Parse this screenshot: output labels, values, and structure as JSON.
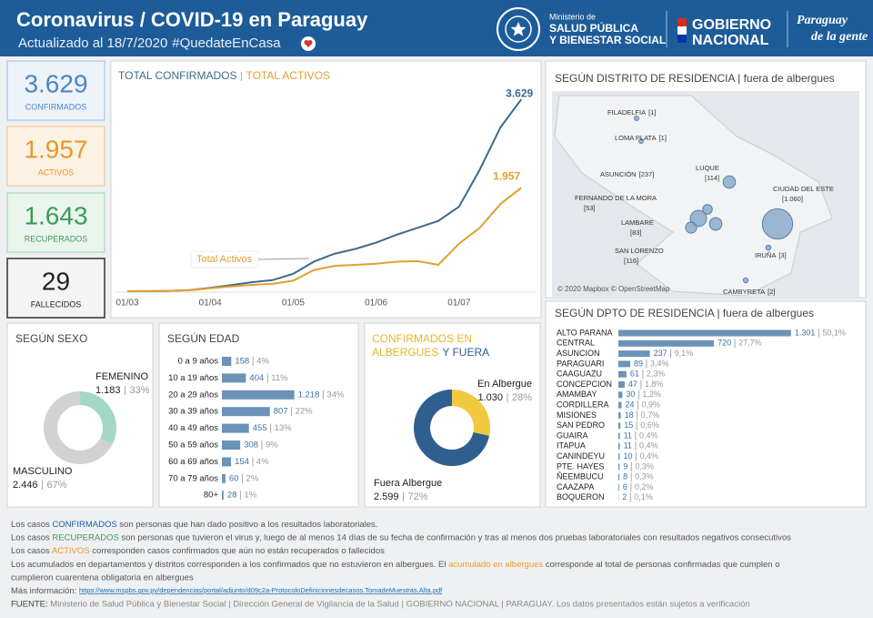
{
  "header": {
    "title": "Coronavirus / COVID-19 en Paraguay",
    "updated": "Actualizado al 18/7/2020",
    "hashtag": "#QuedateEnCasa",
    "ministry": [
      "Ministerio de",
      "SALUD PÚBLICA",
      "Y BIENESTAR SOCIAL"
    ],
    "government": [
      "GOBIERNO",
      "NACIONAL"
    ],
    "brand": [
      "Paraguay",
      "de la gente"
    ]
  },
  "kpis": [
    {
      "value": "3.629",
      "label": "CONFIRMADOS",
      "color": "#4a86c5"
    },
    {
      "value": "1.957",
      "label": "ACTIVOS",
      "color": "#e8962a"
    },
    {
      "value": "1.643",
      "label": "RECUPERADOS",
      "color": "#3d9b5a"
    },
    {
      "value": "29",
      "label": "FALLECIDOS",
      "color": "#222222"
    }
  ],
  "chart_data": [
    {
      "type": "line",
      "title": [
        {
          "text": "TOTAL CONFIRMADOS",
          "color": "#3d6a8e"
        },
        {
          "text": "TOTAL ACTIVOS",
          "color": "#e0a030"
        }
      ],
      "categories": [
        "01/03",
        null,
        null,
        null,
        "01/04",
        null,
        null,
        null,
        "01/05",
        null,
        null,
        null,
        "01/06",
        null,
        null,
        null,
        "01/07",
        null,
        null,
        null
      ],
      "series": [
        {
          "name": "TOTAL CONFIRMADOS",
          "color": "#3d6a8e",
          "values": [
            0,
            2,
            6,
            22,
            65,
            115,
            170,
            210,
            330,
            560,
            710,
            800,
            920,
            1070,
            1200,
            1330,
            1600,
            2300,
            3100,
            3629
          ],
          "value_labels": [
            null,
            null,
            null,
            null,
            null,
            null,
            null,
            null,
            null,
            null,
            null,
            null,
            null,
            null,
            null,
            null,
            null,
            null,
            null,
            "3.629"
          ]
        },
        {
          "name": "TOTAL ACTIVOS",
          "color": "#e0a030",
          "values": [
            0,
            2,
            6,
            20,
            55,
            90,
            120,
            140,
            200,
            400,
            480,
            500,
            520,
            560,
            570,
            500,
            900,
            1200,
            1650,
            1957
          ],
          "value_labels": [
            null,
            null,
            null,
            null,
            null,
            null,
            null,
            null,
            null,
            null,
            null,
            null,
            null,
            null,
            null,
            null,
            null,
            null,
            null,
            "1.957"
          ]
        }
      ],
      "annotation": "Total Activos",
      "ylim": [
        0,
        3700
      ]
    },
    {
      "type": "map",
      "title": "SEGÚN DISTRITO DE RESIDENCIA | fuera de albergues",
      "credit": "© 2020 Mapbox © OpenStreetMap",
      "color": "#7ea1c4",
      "places": [
        {
          "name": "FILADELFIA",
          "value": 1,
          "label": "[1]"
        },
        {
          "name": "LOMA PLATA",
          "value": 1,
          "label": "[1]"
        },
        {
          "name": "ASUNCIÓN",
          "value": 237,
          "label": "[237]"
        },
        {
          "name": "LUQUE",
          "value": 114,
          "label": "[114]"
        },
        {
          "name": "FERNANDO DE LA MORA",
          "value": 53,
          "label": "[53]"
        },
        {
          "name": "LAMBARE",
          "value": 83,
          "label": "[83]"
        },
        {
          "name": "SAN LORENZO",
          "value": 116,
          "label": "[116]"
        },
        {
          "name": "CIUDAD DEL ESTE",
          "value": 1060,
          "label": "[1.060]"
        },
        {
          "name": "IRUÑA",
          "value": 3,
          "label": "[3]"
        },
        {
          "name": "CAMBYRETA",
          "value": 2,
          "label": "[2]"
        }
      ]
    },
    {
      "type": "pie",
      "title": "SEGÚN SEXO",
      "categories": [
        "FEMENINO",
        "MASCULINO"
      ],
      "values": [
        1183,
        2446
      ],
      "value_labels": [
        "1.183",
        "2.446"
      ],
      "percents": [
        33,
        67
      ],
      "percent_labels": [
        "33%",
        "67%"
      ],
      "colors": [
        "#a3d9c4",
        "#d0d2d4"
      ]
    },
    {
      "type": "bar",
      "title": "SEGÚN EDAD",
      "categories": [
        "0 a 9 años",
        "10 a 19 años",
        "20 a 29 años",
        "30 a 39 años",
        "40 a 49 años",
        "50 a 59 años",
        "60 a 69 años",
        "70 a 79 años",
        "80+"
      ],
      "values": [
        158,
        404,
        1218,
        807,
        455,
        308,
        154,
        60,
        28
      ],
      "value_labels": [
        "158",
        "404",
        "1.218",
        "807",
        "455",
        "308",
        "154",
        "60",
        "28"
      ],
      "percents": [
        4,
        11,
        34,
        22,
        13,
        9,
        4,
        2,
        1
      ],
      "percent_labels": [
        "4%",
        "11%",
        "34%",
        "22%",
        "13%",
        "9%",
        "4%",
        "2%",
        "1%"
      ],
      "color": "#6b93b9",
      "xlim": [
        0,
        1300
      ]
    },
    {
      "type": "pie",
      "title": [
        {
          "text": "CONFIRMADOS EN",
          "color": "#e8b425"
        },
        {
          "text": "ALBERGUES",
          "color": "#e8b425"
        },
        {
          "text": "Y FUERA",
          "color": "#2f5f8f"
        }
      ],
      "categories": [
        "En Albergue",
        "Fuera Albergue"
      ],
      "values": [
        1030,
        2599
      ],
      "value_labels": [
        "1.030",
        "2.599"
      ],
      "percents": [
        28,
        72
      ],
      "percent_labels": [
        "28%",
        "72%"
      ],
      "colors": [
        "#f0c940",
        "#2f5f8f"
      ]
    },
    {
      "type": "bar",
      "title": "SEGÚN DPTO DE RESIDENCIA | fuera de albergues",
      "categories": [
        "ALTO PARANA",
        "CENTRAL",
        "ASUNCION",
        "PARAGUARI",
        "CAAGUAZU",
        "CONCEPCION",
        "AMAMBAY",
        "CORDILLERA",
        "MISIONES",
        "SAN PEDRO",
        "GUAIRA",
        "ITAPUA",
        "CANINDEYU",
        "PTE. HAYES",
        "ÑEEMBUCU",
        "CAAZAPA",
        "BOQUERON"
      ],
      "values": [
        1301,
        720,
        237,
        89,
        61,
        47,
        30,
        24,
        18,
        15,
        11,
        11,
        10,
        9,
        8,
        6,
        2
      ],
      "value_labels": [
        "1.301",
        "720",
        "237",
        "89",
        "61",
        "47",
        "30",
        "24",
        "18",
        "15",
        "11",
        "11",
        "10",
        "9",
        "8",
        "6",
        "2"
      ],
      "percents": [
        50.1,
        27.7,
        9.1,
        3.4,
        2.3,
        1.8,
        1.2,
        0.9,
        0.7,
        0.6,
        0.4,
        0.4,
        0.4,
        0.3,
        0.3,
        0.2,
        0.1
      ],
      "percent_labels": [
        "50,1%",
        "27,7%",
        "9,1%",
        "3,4%",
        "2,3%",
        "1,8%",
        "1,2%",
        "0,9%",
        "0,7%",
        "0,6%",
        "0,4%",
        "0,4%",
        "0,4%",
        "0,3%",
        "0,3%",
        "0,2%",
        "0,1%"
      ],
      "color": "#6b93b9",
      "xlim": [
        0,
        1350
      ]
    }
  ],
  "notes": [
    [
      {
        "text": "Los casos "
      },
      {
        "text": "CONFIRMADOS",
        "color": "#1a5fa0"
      },
      {
        "text": " son personas que han dado positivo a los resultados laboratoriales."
      }
    ],
    [
      {
        "text": "Los casos "
      },
      {
        "text": "RECUPERADOS",
        "color": "#3d9b5a"
      },
      {
        "text": " son personas que tuvieron el virus y, luego de al menos 14 días de su fecha de confirmación y tras al menos dos pruebas laboratoriales con resultados negativos consecutivos"
      }
    ],
    [
      {
        "text": "Los casos "
      },
      {
        "text": "ACTIVOS",
        "color": "#e8962a"
      },
      {
        "text": " corresponden casos confirmados que aún no están recuperados o fallecidos"
      }
    ],
    [
      {
        "text": "Los acumulados en departamentos y distritos corresponden a los confirmados que no estuvieron en albergues. El "
      },
      {
        "text": "acumulado en albergues",
        "color": "#e8a020"
      },
      {
        "text": " corresponde al total de personas confirmadas que cumplen o"
      }
    ],
    [
      {
        "text": "cumplieron cuarentena obligatoria en albergues"
      }
    ],
    [
      {
        "text": "Más información: "
      },
      {
        "text": "https://www.mspbs.gov.py/dependencias/portal/adjunto/d09c2a-ProtocoloDefinicionesdecasos.TomadeMuestras.Alta.pdf",
        "color": "#1a6fb0"
      }
    ],
    [
      {
        "text": "FUENTE:",
        "color": "#444444"
      },
      {
        "text": " Ministerio de Salud Pública y Bienestar Social | Dirección General de Vigilancia de la Salud | GOBIERNO NACIONAL | PARAGUAY. Los datos presentados están sujetos a verificación",
        "color": "#888888"
      }
    ]
  ]
}
